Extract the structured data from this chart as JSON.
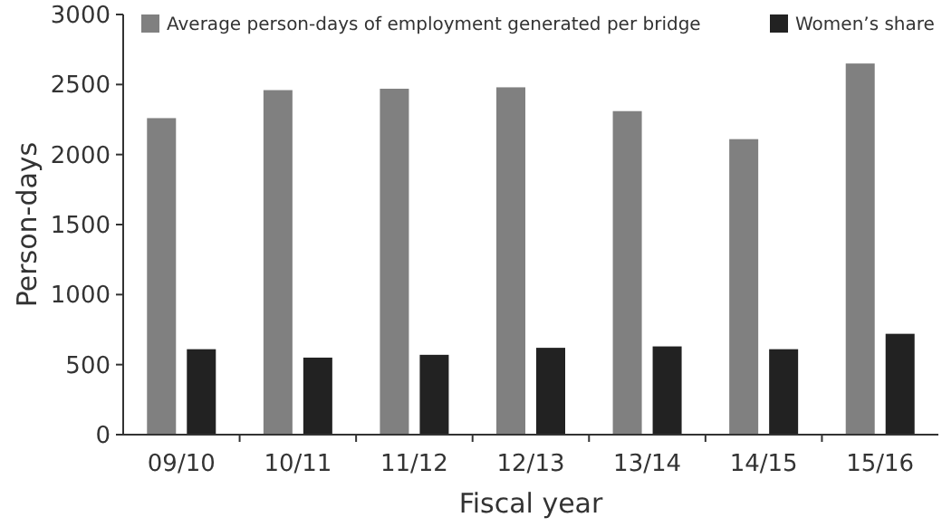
{
  "chart_data": {
    "type": "bar",
    "xlabel": "Fiscal year",
    "ylabel": "Person-days",
    "categories": [
      "09/10",
      "10/11",
      "11/12",
      "12/13",
      "13/14",
      "14/15",
      "15/16"
    ],
    "series": [
      {
        "name": "Average person-days of employment generated per bridge",
        "color": "#808080",
        "values": [
          2260,
          2460,
          2470,
          2480,
          2310,
          2110,
          2650
        ]
      },
      {
        "name": "Women’s share",
        "color": "#222222",
        "values": [
          610,
          550,
          570,
          620,
          630,
          610,
          720
        ]
      }
    ],
    "ylim": [
      0,
      3000
    ],
    "yticks": [
      0,
      500,
      1000,
      1500,
      2000,
      2500,
      3000
    ],
    "grid": false,
    "legend": "top"
  }
}
